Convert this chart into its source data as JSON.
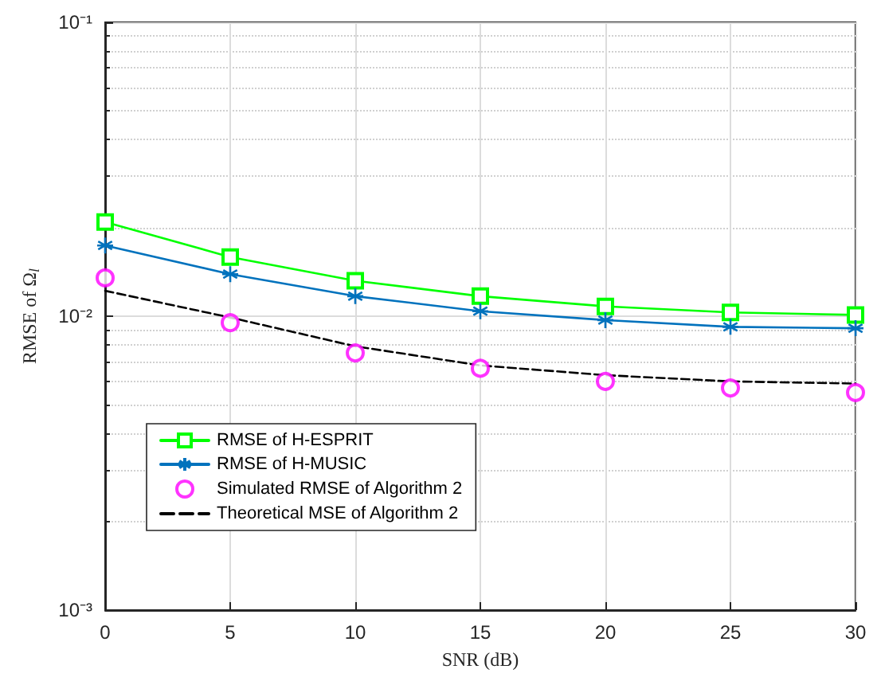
{
  "chart_data": {
    "type": "line",
    "xlabel": "SNR (dB)",
    "ylabel": "RMSE of Ω$_{l}$",
    "x": [
      0,
      5,
      10,
      15,
      20,
      25,
      30
    ],
    "xlim": [
      0,
      30
    ],
    "xticks": [
      0,
      5,
      10,
      15,
      20,
      25,
      30
    ],
    "ylim": [
      0.001,
      0.1
    ],
    "yticks": [
      {
        "value": 0.001,
        "label": "10⁻³"
      },
      {
        "value": 0.01,
        "label": "10⁻²"
      },
      {
        "value": 0.1,
        "label": "10⁻¹"
      }
    ],
    "log": true,
    "grid": true,
    "legend": "bottom left",
    "series": [
      {
        "name": "RMSE of H-ESPRIT",
        "color": "#00ff00",
        "marker": "square",
        "line_style": "solid",
        "values": [
          0.0209,
          0.0159,
          0.0132,
          0.0117,
          0.0108,
          0.0103,
          0.0101
        ]
      },
      {
        "name": "RMSE of H-MUSIC",
        "color": "#0072bd",
        "marker": "cross",
        "line_style": "solid",
        "values": [
          0.0174,
          0.0139,
          0.0117,
          0.0104,
          0.0097,
          0.0092,
          0.0091
        ]
      },
      {
        "name": "Simulated RMSE of Algorithm 2",
        "color": "#ff00ff",
        "type": "scatter",
        "marker": "circle",
        "values": [
          0.0135,
          0.0095,
          0.0075,
          0.00665,
          0.006,
          0.0057,
          0.0055
        ]
      },
      {
        "name": "Theoretical MSE of Algorithm 2",
        "color": "#000000",
        "marker": "none",
        "line_style": "dashed",
        "values": [
          0.0122,
          0.0099,
          0.0079,
          0.0068,
          0.0063,
          0.006,
          0.0059
        ]
      }
    ]
  }
}
